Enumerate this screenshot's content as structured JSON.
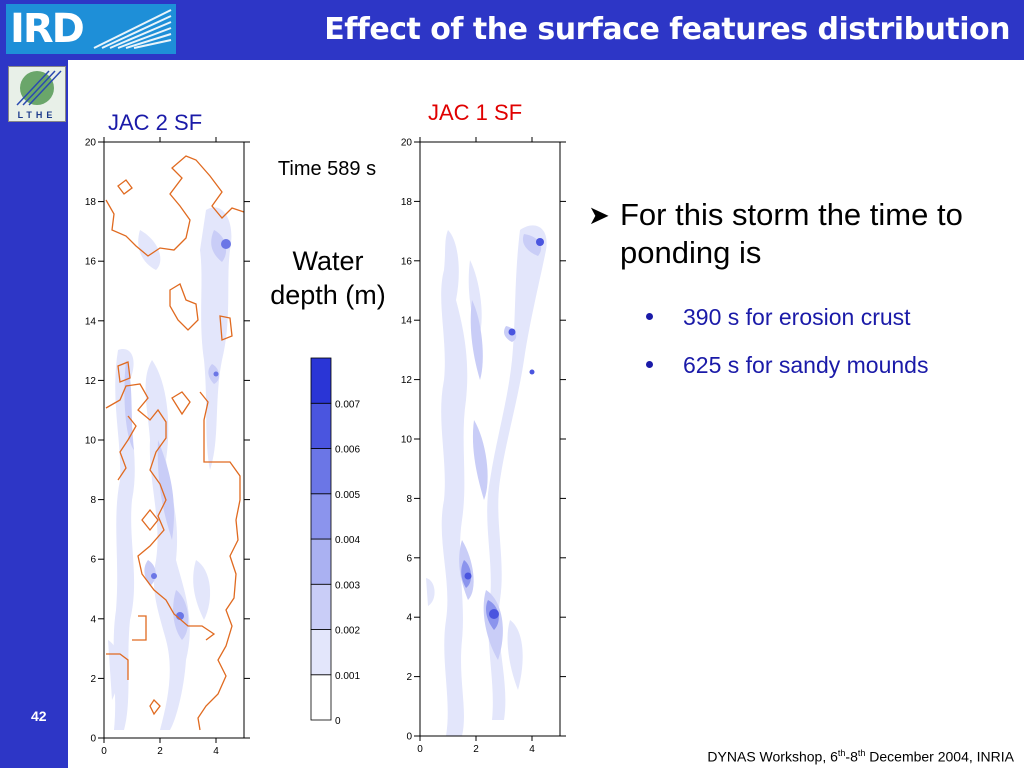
{
  "header": {
    "title": "Effect of the surface features distribution",
    "logo_text": "IRD"
  },
  "sidebar": {
    "lthe_logo_text": "LTHE",
    "page_number": "42"
  },
  "colors": {
    "brand_blue": "#2d36c6",
    "jac2_label": "#1a1aa8",
    "jac1_label": "#e00000",
    "contour_orange": "#e06a20",
    "text_blue": "#1a1aa8"
  },
  "panels": {
    "left_title": "JAC 2 SF",
    "right_title": "JAC 1 SF",
    "y_ticks": [
      "0",
      "2",
      "4",
      "6",
      "8",
      "10",
      "12",
      "14",
      "16",
      "18",
      "20"
    ],
    "x_ticks": [
      "0",
      "2",
      "4"
    ]
  },
  "time_label": "Time 589 s",
  "colorbar": {
    "label_line1": "Water",
    "label_line2": "depth (m)",
    "levels": [
      "0",
      "0.001",
      "0.002",
      "0.003",
      "0.004",
      "0.005",
      "0.006",
      "0.007"
    ],
    "colors": [
      "#ffffff",
      "#e3e6fb",
      "#c9cdf7",
      "#aab1f2",
      "#8b94ed",
      "#6b76e6",
      "#4a55df",
      "#2a35d6"
    ]
  },
  "bullets": {
    "main": "For this storm the time to ponding is",
    "items": [
      "390 s for erosion crust",
      "625 s for sandy mounds"
    ]
  },
  "footer": {
    "prefix": "DYNAS Workshop, 6",
    "sup1": "th",
    "middle": "-8",
    "sup2": "th",
    "suffix": " December 2004, INRIA"
  }
}
